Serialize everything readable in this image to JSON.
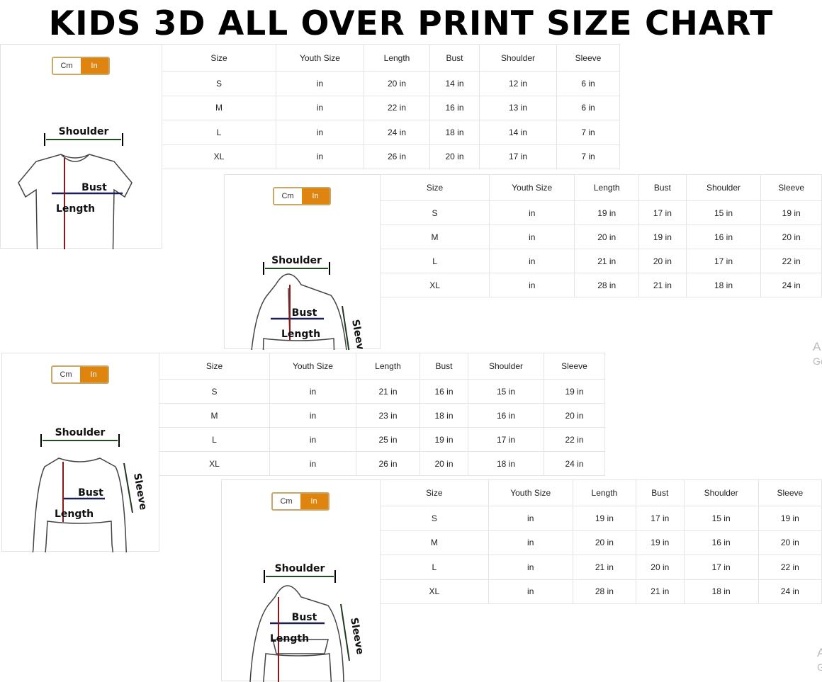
{
  "title": "KIDS 3D ALL OVER PRINT SIZE CHART",
  "toggle": {
    "cm": "Cm",
    "in": "In",
    "active": "In",
    "active_color": "#e08410"
  },
  "labels": {
    "shoulder": "Shoulder",
    "bust": "Bust",
    "length": "Length",
    "sleeve": "Sleeve"
  },
  "columns": [
    "Size",
    "Youth Size",
    "Length",
    "Bust",
    "Shoulder",
    "Sleeve"
  ],
  "charts": [
    {
      "garment": "t-shirt",
      "rows": [
        [
          "S",
          "in",
          "20 in",
          "14 in",
          "12 in",
          "6 in"
        ],
        [
          "M",
          "in",
          "22 in",
          "16 in",
          "13 in",
          "6 in"
        ],
        [
          "L",
          "in",
          "24 in",
          "18 in",
          "14 in",
          "7 in"
        ],
        [
          "XL",
          "in",
          "26 in",
          "20 in",
          "17 in",
          "7 in"
        ]
      ]
    },
    {
      "garment": "zip-hoodie",
      "rows": [
        [
          "S",
          "in",
          "19 in",
          "17 in",
          "15 in",
          "19 in"
        ],
        [
          "M",
          "in",
          "20 in",
          "19 in",
          "16 in",
          "20 in"
        ],
        [
          "L",
          "in",
          "21 in",
          "20 in",
          "17 in",
          "22 in"
        ],
        [
          "XL",
          "in",
          "28 in",
          "21 in",
          "18 in",
          "24 in"
        ]
      ]
    },
    {
      "garment": "long-sleeve",
      "rows": [
        [
          "S",
          "in",
          "21 in",
          "16 in",
          "15 in",
          "19 in"
        ],
        [
          "M",
          "in",
          "23 in",
          "18 in",
          "16 in",
          "20 in"
        ],
        [
          "L",
          "in",
          "25 in",
          "19 in",
          "17 in",
          "22 in"
        ],
        [
          "XL",
          "in",
          "26 in",
          "20 in",
          "18 in",
          "24 in"
        ]
      ]
    },
    {
      "garment": "pullover-hoodie",
      "rows": [
        [
          "S",
          "in",
          "19 in",
          "17 in",
          "15 in",
          "19 in"
        ],
        [
          "M",
          "in",
          "20 in",
          "19 in",
          "16 in",
          "20 in"
        ],
        [
          "L",
          "in",
          "21 in",
          "20 in",
          "17 in",
          "22 in"
        ],
        [
          "XL",
          "in",
          "28 in",
          "21 in",
          "18 in",
          "24 in"
        ]
      ]
    }
  ],
  "watermark": [
    "A",
    "Go",
    "A",
    "G"
  ]
}
